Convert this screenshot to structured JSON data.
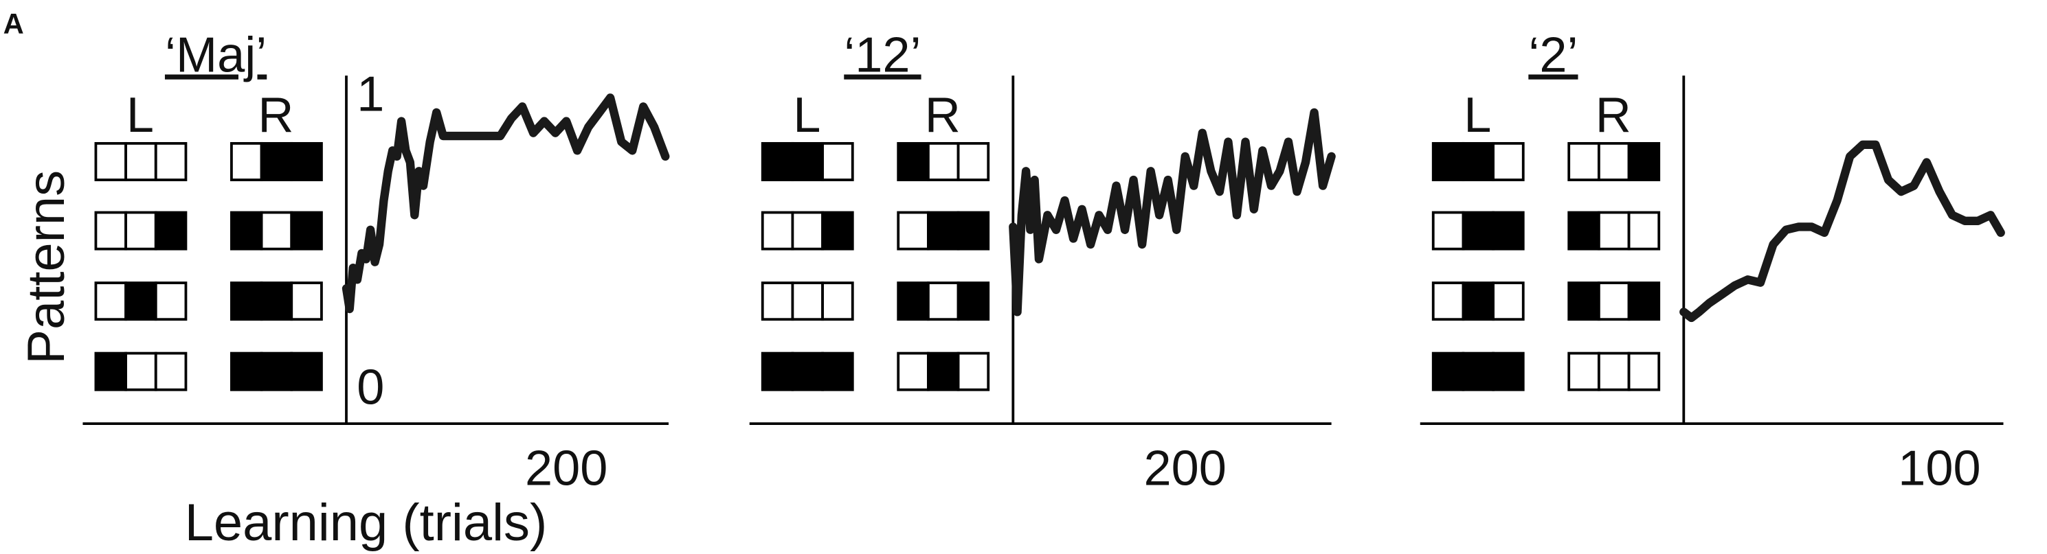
{
  "panel_label": "A",
  "y_label": "Patterns",
  "x_label": "Learning (trials)",
  "chart_data": [
    {
      "type": "line",
      "title": "‘Maj’",
      "column_labels": [
        "L",
        "R"
      ],
      "x": [
        0,
        3,
        6,
        10,
        14,
        18,
        22,
        26,
        30,
        34,
        38,
        42,
        46,
        50,
        54,
        58,
        62,
        66,
        70,
        76,
        82,
        88,
        94,
        100,
        110,
        120,
        130,
        140,
        150,
        160,
        170,
        180,
        190,
        200,
        210,
        220,
        230,
        240,
        250,
        260,
        270,
        280,
        290
      ],
      "series": [
        {
          "color": "#1a1a1a",
          "values": [
            0.35,
            0.28,
            0.42,
            0.38,
            0.47,
            0.45,
            0.55,
            0.44,
            0.5,
            0.65,
            0.75,
            0.82,
            0.8,
            0.92,
            0.82,
            0.78,
            0.6,
            0.75,
            0.7,
            0.85,
            0.95,
            0.87,
            0.87,
            0.87,
            0.87,
            0.87,
            0.87,
            0.87,
            0.93,
            0.97,
            0.88,
            0.92,
            0.88,
            0.92,
            0.82,
            0.9,
            0.95,
            1.0,
            0.85,
            0.82,
            0.97,
            0.9,
            0.8
          ]
        }
      ],
      "xlim": [
        0,
        293
      ],
      "xticks": [
        200
      ],
      "ylim": [
        0,
        1
      ],
      "yticks": [
        0,
        1
      ]
    },
    {
      "type": "line",
      "title": "‘12’",
      "column_labels": [
        "L",
        "R"
      ],
      "x": [
        0,
        5,
        10,
        15,
        20,
        25,
        30,
        40,
        50,
        60,
        70,
        80,
        90,
        100,
        110,
        120,
        130,
        140,
        150,
        160,
        170,
        180,
        190,
        200,
        210,
        220,
        230,
        240,
        250,
        260,
        270,
        280,
        290,
        300,
        310,
        320,
        330,
        340,
        350,
        360,
        370
      ],
      "series": [
        {
          "color": "#1a1a1a",
          "values": [
            0.56,
            0.27,
            0.6,
            0.75,
            0.55,
            0.72,
            0.45,
            0.6,
            0.55,
            0.65,
            0.52,
            0.62,
            0.5,
            0.6,
            0.55,
            0.7,
            0.55,
            0.72,
            0.5,
            0.75,
            0.6,
            0.72,
            0.55,
            0.8,
            0.7,
            0.88,
            0.75,
            0.68,
            0.85,
            0.6,
            0.85,
            0.62,
            0.82,
            0.7,
            0.75,
            0.85,
            0.68,
            0.78,
            0.95,
            0.7,
            0.8
          ]
        }
      ],
      "xlim": [
        0,
        370
      ],
      "xticks": [
        200
      ],
      "ylim": [
        0,
        1
      ]
    },
    {
      "type": "line",
      "title": "‘2’",
      "column_labels": [
        "L",
        "R"
      ],
      "x": [
        0,
        3,
        6,
        10,
        15,
        20,
        25,
        30,
        35,
        40,
        45,
        50,
        55,
        60,
        65,
        70,
        75,
        80,
        85,
        90,
        95,
        100,
        105,
        110,
        115,
        120,
        124
      ],
      "series": [
        {
          "color": "#1a1a1a",
          "values": [
            0.27,
            0.25,
            0.27,
            0.3,
            0.33,
            0.36,
            0.38,
            0.37,
            0.5,
            0.55,
            0.56,
            0.56,
            0.54,
            0.65,
            0.8,
            0.84,
            0.84,
            0.72,
            0.68,
            0.7,
            0.78,
            0.68,
            0.6,
            0.58,
            0.58,
            0.6,
            0.54
          ]
        }
      ],
      "xlim": [
        0,
        125
      ],
      "xticks": [
        100
      ],
      "ylim": [
        0,
        1
      ]
    }
  ]
}
